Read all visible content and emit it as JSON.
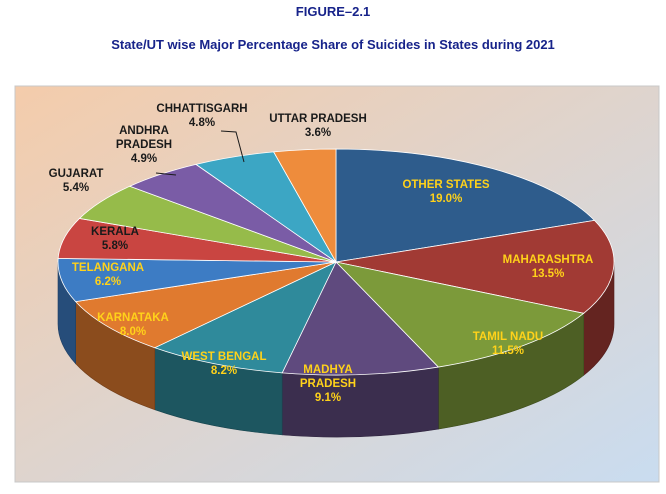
{
  "figure": {
    "label": "FIGURE–2.1",
    "title": "State/UT wise Major Percentage Share of Suicides in States during 2021"
  },
  "chart_data": {
    "type": "pie",
    "title": "State/UT wise Major Percentage Share of Suicides in States during 2021",
    "style": "3d-exploded-ellipse",
    "unit": "%",
    "slices": [
      {
        "label": "OTHER STATES",
        "value": 19.0,
        "display": "19.0%",
        "color": "#2e5c8c",
        "text_color": "#ffd21a"
      },
      {
        "label": "MAHARASHTRA",
        "value": 13.5,
        "display": "13.5%",
        "color": "#a13a34",
        "text_color": "#ffd21a"
      },
      {
        "label": "TAMIL NADU",
        "value": 11.5,
        "display": "11.5%",
        "color": "#7c9a3a",
        "text_color": "#ffd21a"
      },
      {
        "label": "MADHYA PRADESH",
        "value": 9.1,
        "display": "9.1%",
        "color": "#5f4a7e",
        "text_color": "#ffd21a"
      },
      {
        "label": "WEST BENGAL",
        "value": 8.2,
        "display": "8.2%",
        "color": "#2f8a9b",
        "text_color": "#ffd21a"
      },
      {
        "label": "KARNATAKA",
        "value": 8.0,
        "display": "8.0%",
        "color": "#e07a2f",
        "text_color": "#ffd21a"
      },
      {
        "label": "TELANGANA",
        "value": 6.2,
        "display": "6.2%",
        "color": "#3d7cc4",
        "text_color": "#ffd21a"
      },
      {
        "label": "KERALA",
        "value": 5.8,
        "display": "5.8%",
        "color": "#c94541",
        "text_color": "#1a1a1a"
      },
      {
        "label": "GUJARAT",
        "value": 5.4,
        "display": "5.4%",
        "color": "#96bb4a",
        "text_color": "#1a1a1a"
      },
      {
        "label": "ANDHRA PRADESH",
        "value": 4.9,
        "display": "4.9%",
        "color": "#7a5ca6",
        "text_color": "#1a1a1a"
      },
      {
        "label": "CHHATTISGARH",
        "value": 4.8,
        "display": "4.8%",
        "color": "#3ca6c4",
        "text_color": "#1a1a1a"
      },
      {
        "label": "UTTAR PRADESH",
        "value": 3.6,
        "display": "3.6%",
        "color": "#ee8c3c",
        "text_color": "#1a1a1a"
      }
    ],
    "legend": "none",
    "background_gradient": [
      "#f4ccab",
      "#c9dcf0"
    ]
  }
}
